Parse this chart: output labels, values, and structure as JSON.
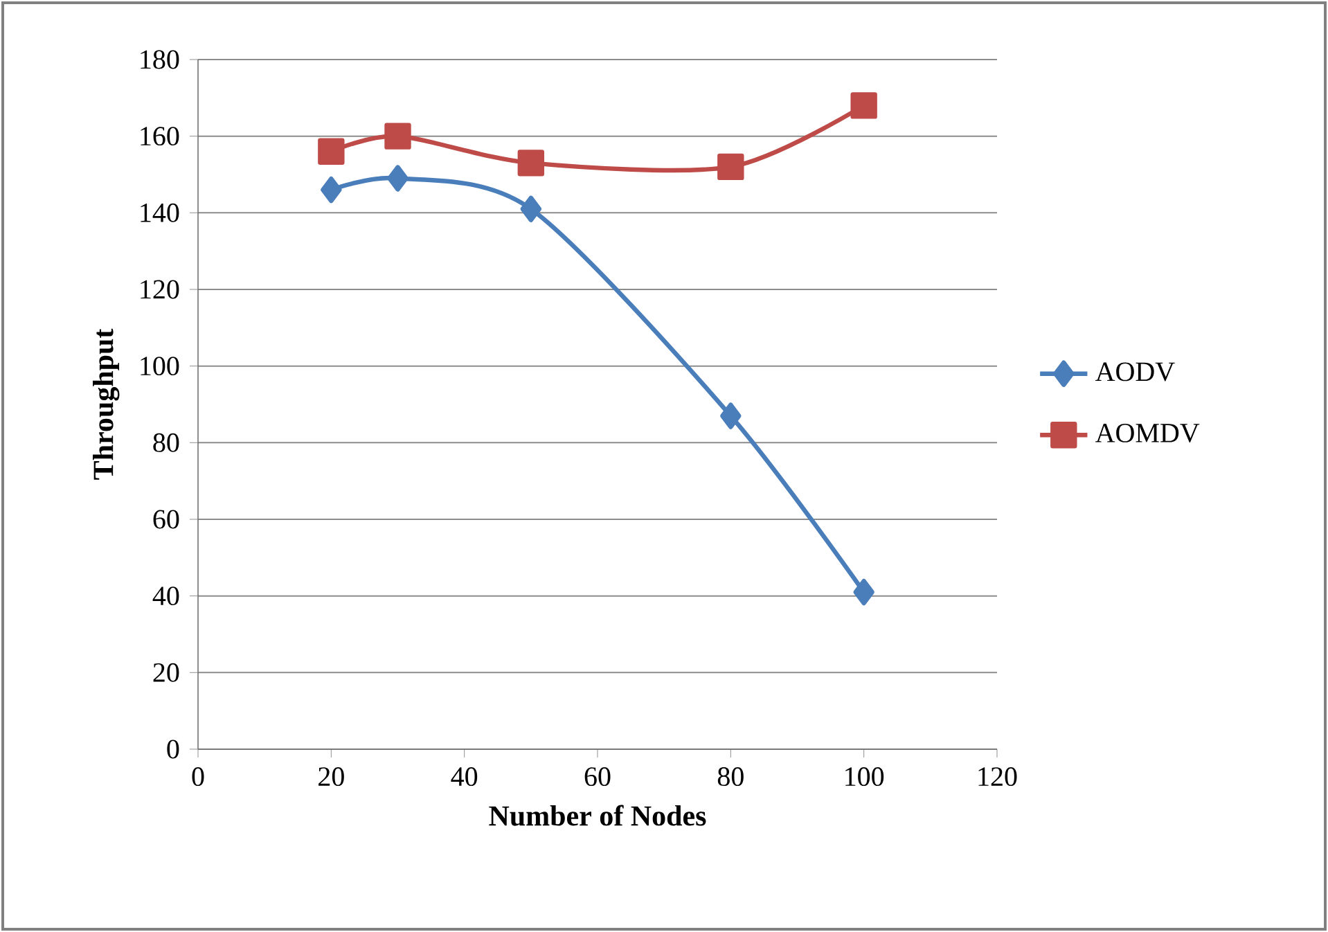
{
  "chart_data": {
    "type": "line",
    "xlabel": "Number of Nodes",
    "ylabel": "Throughput",
    "x": [
      20,
      30,
      50,
      80,
      100
    ],
    "series": [
      {
        "name": "AODV",
        "color": "#4a7ebb",
        "marker": "diamond",
        "values": [
          146,
          149,
          141,
          87,
          41
        ]
      },
      {
        "name": "AOMDV",
        "color": "#be4b48",
        "marker": "square",
        "values": [
          156,
          160,
          153,
          152,
          168
        ]
      }
    ],
    "xlim": [
      0,
      120
    ],
    "xticks": [
      0,
      20,
      40,
      60,
      80,
      100,
      120
    ],
    "ylim": [
      0,
      180
    ],
    "yticks": [
      0,
      20,
      40,
      60,
      80,
      100,
      120,
      140,
      160,
      180
    ],
    "grid": "y",
    "legend": "right"
  }
}
